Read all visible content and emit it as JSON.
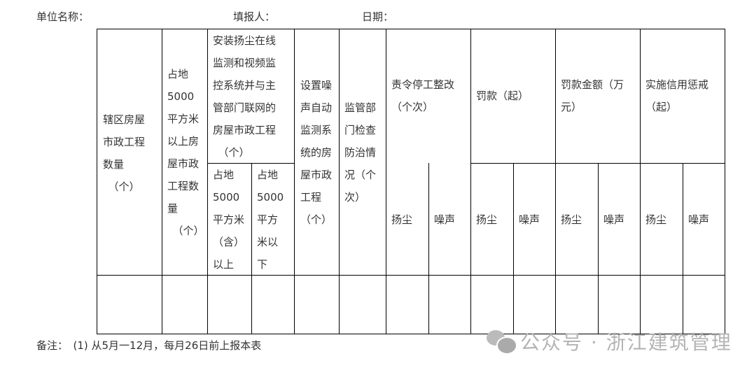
{
  "header": {
    "unit_label": "单位名称：",
    "filler_label": "填报人：",
    "date_label": "日期："
  },
  "table": {
    "col1": "辖区房屋\n市政工程\n数量\n　（个）",
    "col2": "占地\n5000\n平方米\n以上房\n屋市政\n工程数\n量\n　（个）",
    "col3": "安装扬尘在线\n监测和视频监\n控系统并与主\n管部门联网的\n房屋市政工程\n　（个）",
    "col3_sub1": "占地\n5000\n平方米\n（含）\n以上",
    "col3_sub2": "占地\n5000\n平方\n米以\n下",
    "col4": "设置噪\n声自动\n监测系\n统的房\n屋市政\n工程\n（个）",
    "col5": "监管部\n门检查\n防治情\n况（个\n次）",
    "groups": [
      "责令停工整改\n（个次）",
      "罚款（起）",
      "罚款金额（万\n元）",
      "实施信用惩戒\n（起）"
    ],
    "sub_dust": "扬尘",
    "sub_noise": "噪声"
  },
  "note": "备注：　(1) 从5月一12月，每月26日前上报本表",
  "watermark": "公众号 · 浙江建筑管理"
}
